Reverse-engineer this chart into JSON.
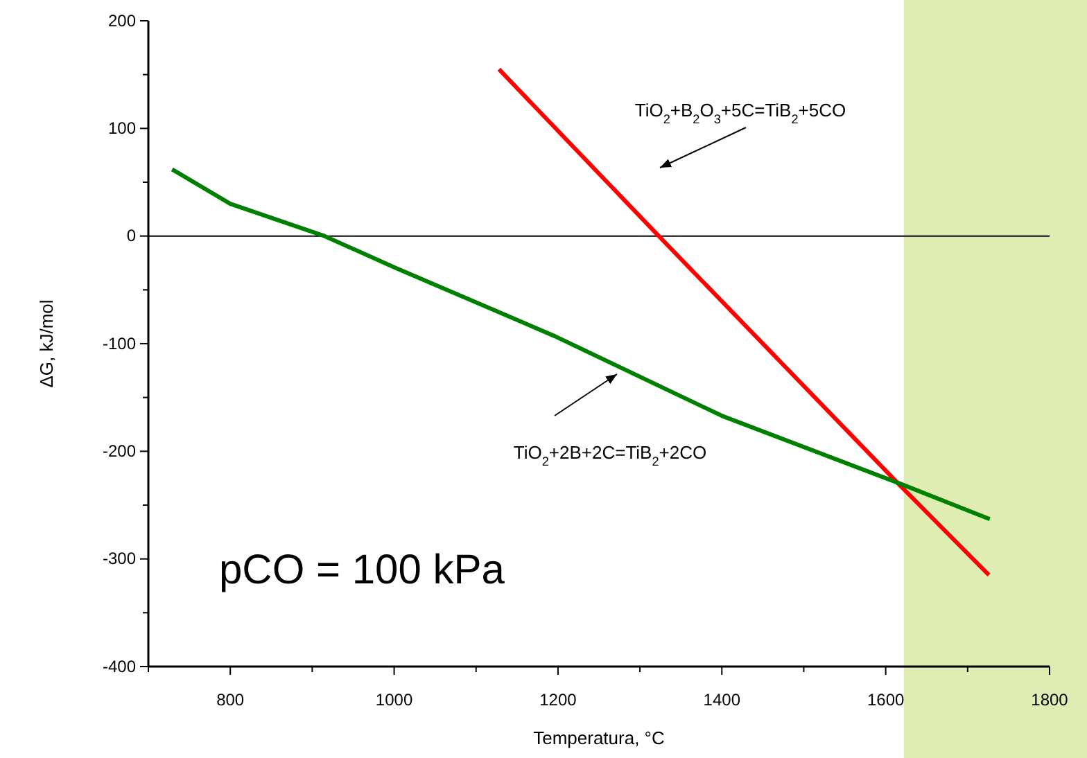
{
  "chart_data": {
    "type": "line",
    "xlabel": "Temperatura, °C",
    "ylabel": "ΔG, kJ/mol",
    "xlim": [
      700,
      1800
    ],
    "ylim": [
      -400,
      200
    ],
    "xticks": [
      {
        "value": 700,
        "label": null
      },
      800,
      {
        "value": 900,
        "label": null
      },
      1000,
      {
        "value": 1100,
        "label": null
      },
      1200,
      {
        "value": 1300,
        "label": null
      },
      1400,
      {
        "value": 1500,
        "label": null
      },
      1600,
      {
        "value": 1700,
        "label": null
      },
      1800
    ],
    "yticks": [
      -400,
      {
        "value": -350,
        "label": null
      },
      -300,
      {
        "value": -250,
        "label": null
      },
      -200,
      {
        "value": -150,
        "label": null
      },
      -100,
      {
        "value": -50,
        "label": null
      },
      0,
      {
        "value": 50,
        "label": null
      },
      100,
      {
        "value": 150,
        "label": null
      },
      200
    ],
    "grid": false,
    "marker": "none",
    "line_style": "solid",
    "series": [
      {
        "color": "#ff0000",
        "x": [
          1128,
          1323,
          1614,
          1726
        ],
        "values": [
          155,
          0,
          -229,
          -315
        ]
      },
      {
        "color": "#008000",
        "x": [
          729,
          800,
          915,
          1000,
          1196,
          1400,
          1614,
          1727
        ],
        "values": [
          62,
          30,
          0,
          -29,
          -93,
          -167,
          -229,
          -263
        ]
      }
    ],
    "ref_lines": [
      {
        "axis": "y",
        "value": 0,
        "color": "#000000"
      }
    ],
    "bands": [
      {
        "axis": "x",
        "from": 1622,
        "to": 1800,
        "color": "#dfedb3"
      }
    ],
    "annotations": [
      "TiO$_{2}$+B$_{2}$O$_{3}$+5C=TiB$_{2}$+5CO",
      "TiO$_{2}$+2B+2C=TiB$_{2}$+2CO",
      "pCO = 100 kPa"
    ]
  }
}
